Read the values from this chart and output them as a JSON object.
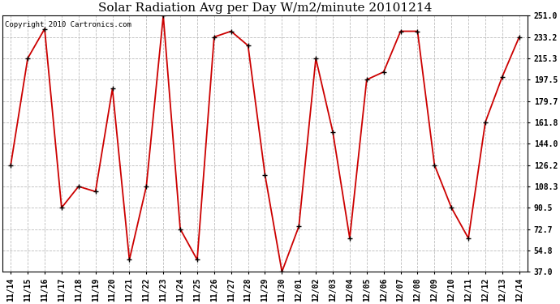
{
  "title": "Solar Radiation Avg per Day W/m2/minute 20101214",
  "copyright_text": "Copyright 2010 Cartronics.com",
  "dates": [
    "11/14",
    "11/15",
    "11/16",
    "11/17",
    "11/18",
    "11/19",
    "11/20",
    "11/21",
    "11/22",
    "11/23",
    "11/24",
    "11/25",
    "11/26",
    "11/27",
    "11/28",
    "11/29",
    "11/30",
    "12/01",
    "12/02",
    "12/03",
    "12/04",
    "12/05",
    "12/06",
    "12/07",
    "12/08",
    "12/09",
    "12/10",
    "12/11",
    "12/12",
    "12/13",
    "12/14"
  ],
  "values": [
    126.2,
    215.3,
    240.0,
    90.5,
    108.3,
    104.0,
    190.0,
    47.0,
    108.3,
    251.0,
    72.7,
    47.0,
    233.2,
    238.0,
    226.0,
    118.0,
    37.0,
    75.0,
    215.3,
    154.0,
    65.0,
    197.5,
    204.0,
    238.0,
    238.0,
    126.2,
    90.5,
    65.0,
    162.0,
    200.0,
    233.2
  ],
  "yticks": [
    37.0,
    54.8,
    72.7,
    90.5,
    108.3,
    126.2,
    144.0,
    161.8,
    179.7,
    197.5,
    215.3,
    233.2,
    251.0
  ],
  "ylim": [
    37.0,
    251.0
  ],
  "line_color": "#cc0000",
  "marker": "s",
  "marker_size": 2.5,
  "bg_color": "#ffffff",
  "grid_color": "#bbbbbb",
  "title_fontsize": 11,
  "copyright_fontsize": 6.5,
  "tick_fontsize": 7,
  "ytick_fontsize": 7
}
